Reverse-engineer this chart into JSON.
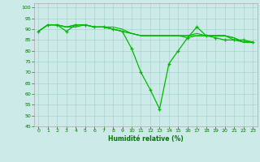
{
  "title": "",
  "xlabel": "Humidité relative (%)",
  "ylabel": "",
  "background_color": "#cceae7",
  "grid_color": "#aad4d0",
  "line_color": "#00bb00",
  "marker_color": "#00bb00",
  "xlim": [
    -0.5,
    23.5
  ],
  "ylim": [
    45,
    102
  ],
  "yticks": [
    45,
    50,
    55,
    60,
    65,
    70,
    75,
    80,
    85,
    90,
    95,
    100
  ],
  "xticks": [
    0,
    1,
    2,
    3,
    4,
    5,
    6,
    7,
    8,
    9,
    10,
    11,
    12,
    13,
    14,
    15,
    16,
    17,
    18,
    19,
    20,
    21,
    22,
    23
  ],
  "series": [
    [
      89,
      92,
      92,
      89,
      92,
      92,
      91,
      91,
      90,
      89,
      81,
      70,
      62,
      53,
      74,
      80,
      86,
      91,
      87,
      86,
      85,
      85,
      85,
      84
    ],
    [
      89,
      92,
      92,
      91,
      92,
      92,
      91,
      91,
      91,
      90,
      88,
      87,
      87,
      87,
      87,
      87,
      87,
      87,
      87,
      87,
      87,
      85,
      84,
      84
    ],
    [
      89,
      92,
      92,
      91,
      92,
      92,
      91,
      91,
      90,
      89,
      88,
      87,
      87,
      87,
      87,
      87,
      87,
      88,
      87,
      87,
      87,
      86,
      84,
      84
    ],
    [
      89,
      92,
      92,
      91,
      91,
      92,
      91,
      91,
      90,
      89,
      88,
      87,
      87,
      87,
      87,
      87,
      86,
      87,
      87,
      87,
      87,
      86,
      84,
      84
    ]
  ]
}
